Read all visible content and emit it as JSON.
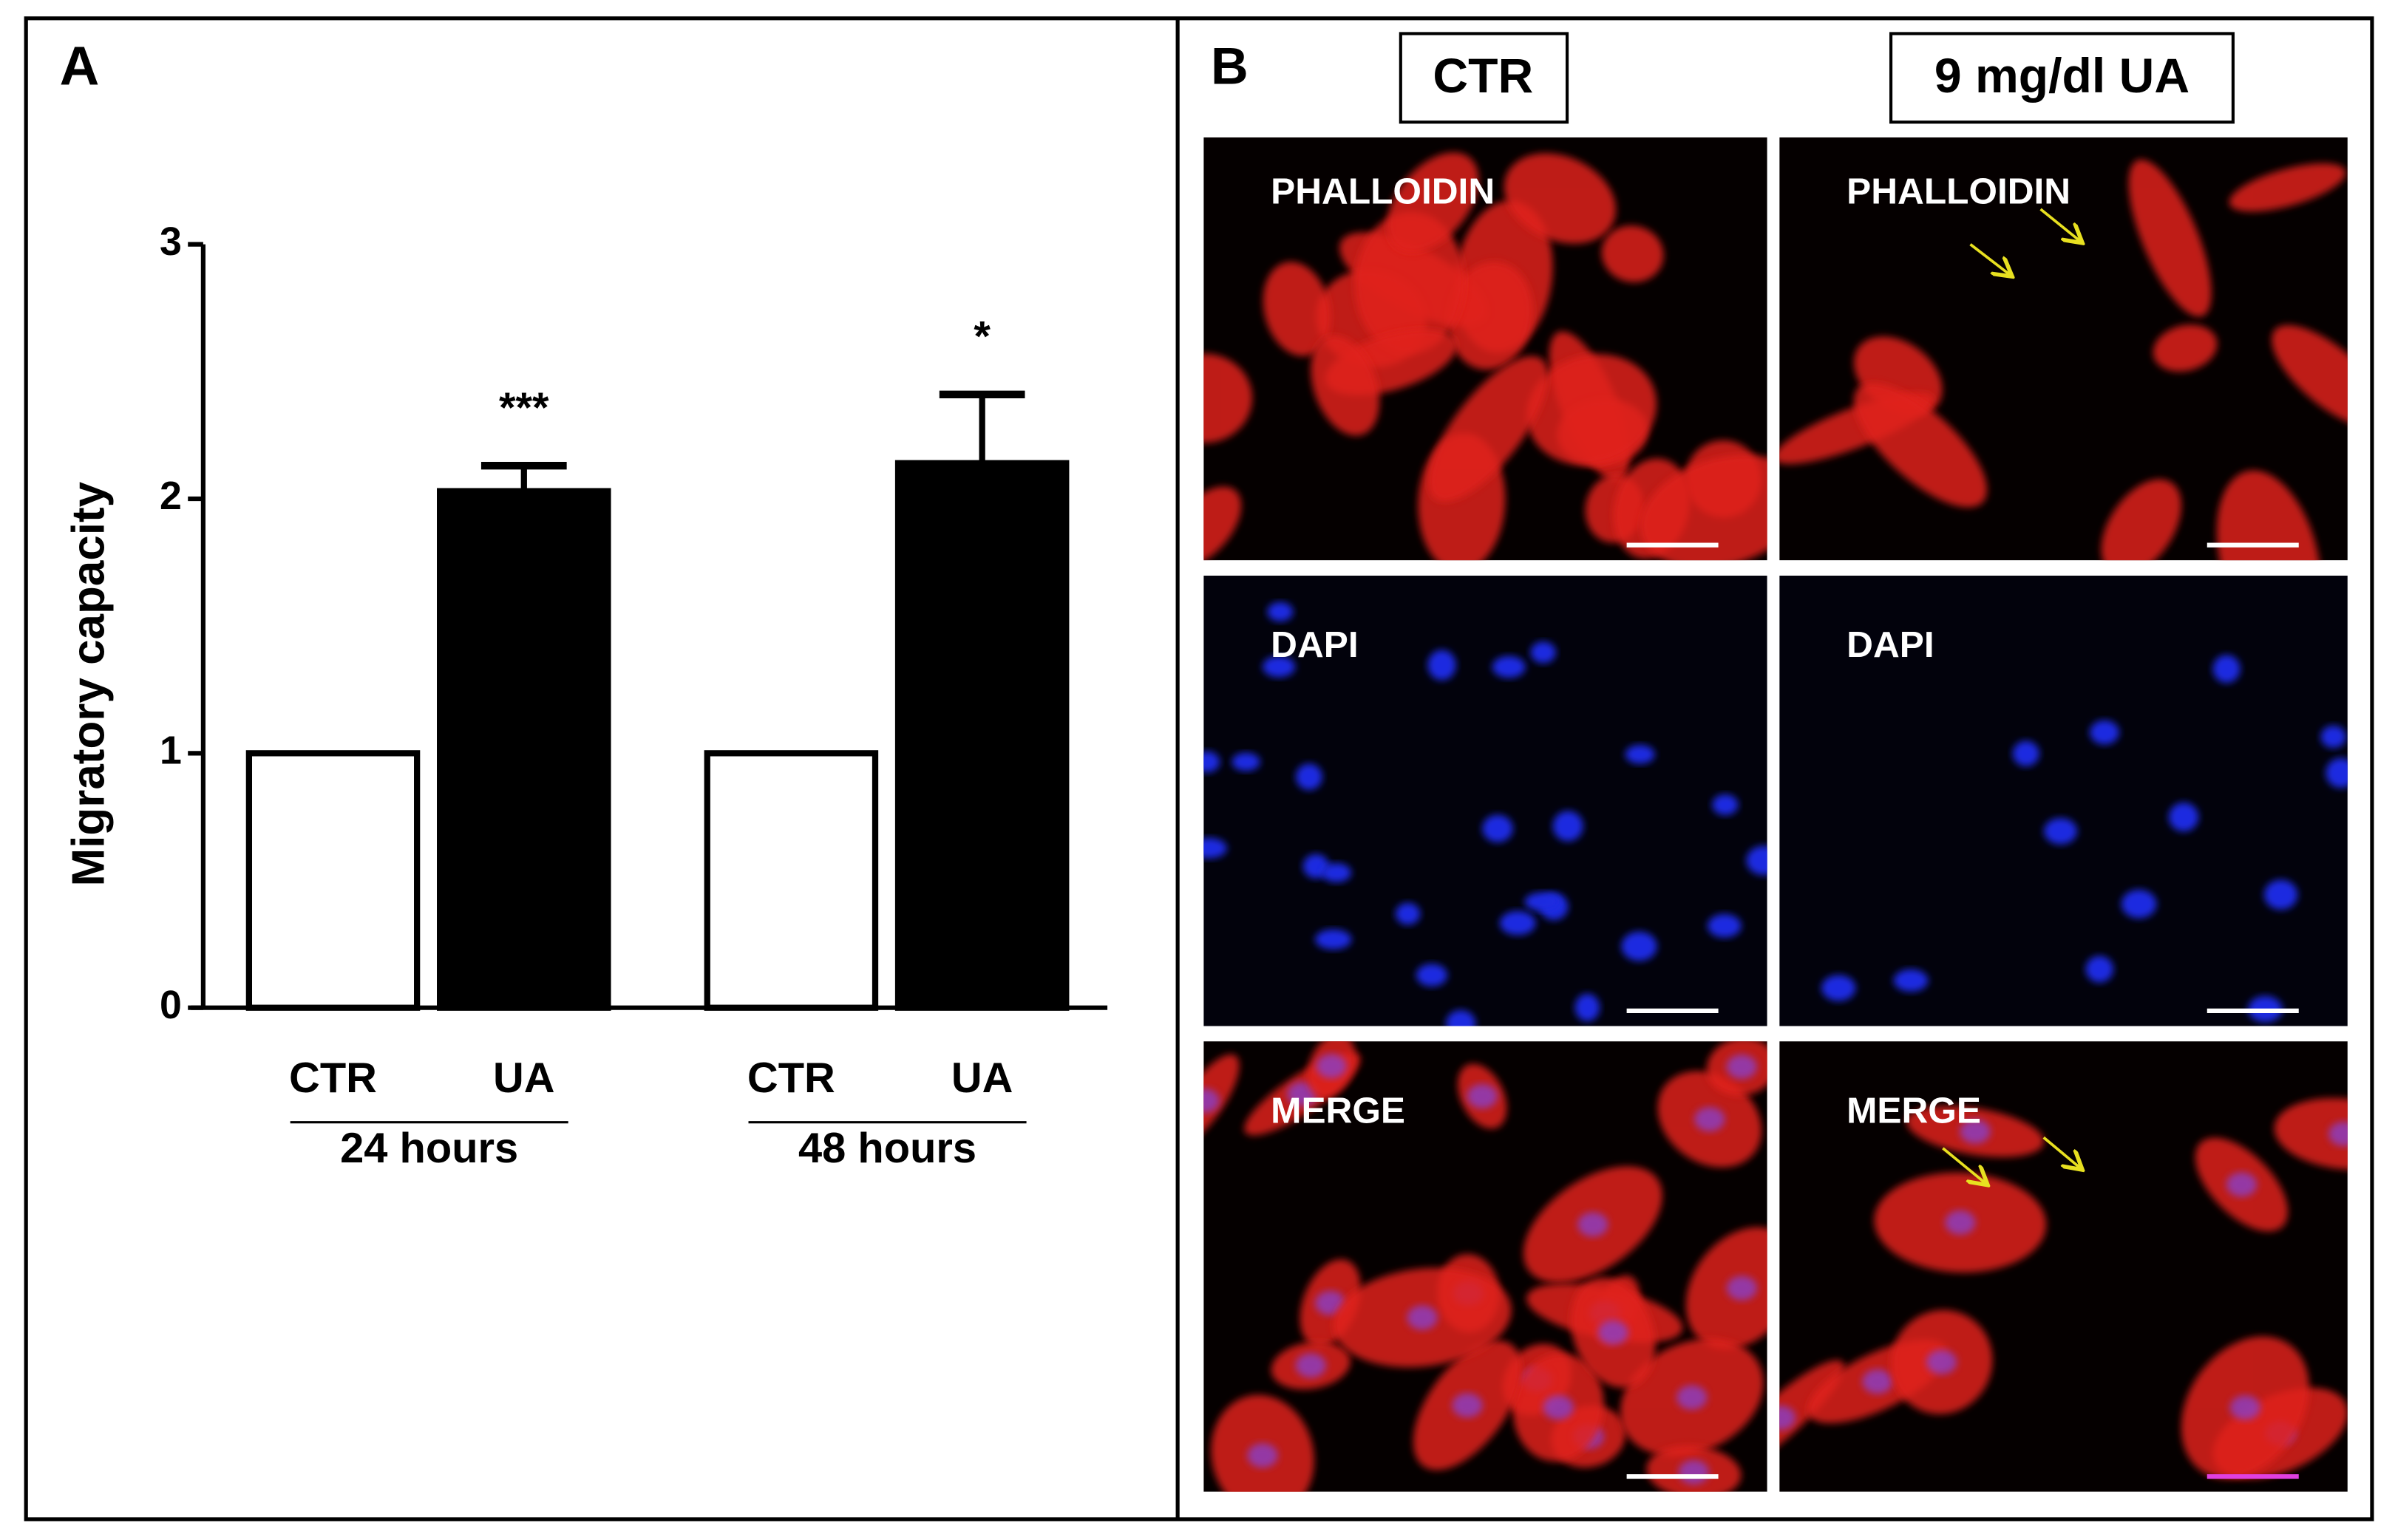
{
  "chart_data": {
    "type": "bar",
    "panel_label": "A",
    "ylabel": "Migratory capacity",
    "categories": [
      "CTR",
      "UA",
      "CTR",
      "UA"
    ],
    "groups": [
      "24 hours",
      "48 hours"
    ],
    "values": [
      1,
      2.03,
      1,
      2.14
    ],
    "errors": [
      0,
      0.1,
      0,
      0.27
    ],
    "colors": [
      "#ffffff",
      "#000000",
      "#ffffff",
      "#000000"
    ],
    "annotations": [
      {
        "category": 1,
        "text": "***"
      },
      {
        "category": 3,
        "text": "*"
      }
    ],
    "ylim": [
      0,
      3
    ],
    "yticks": [
      0,
      1,
      2,
      3
    ]
  },
  "panel_b": {
    "label": "B",
    "columns": [
      "CTR",
      "9 mg/dl UA"
    ],
    "rows": [
      "PHALLOIDIN",
      "DAPI",
      "MERGE"
    ]
  }
}
